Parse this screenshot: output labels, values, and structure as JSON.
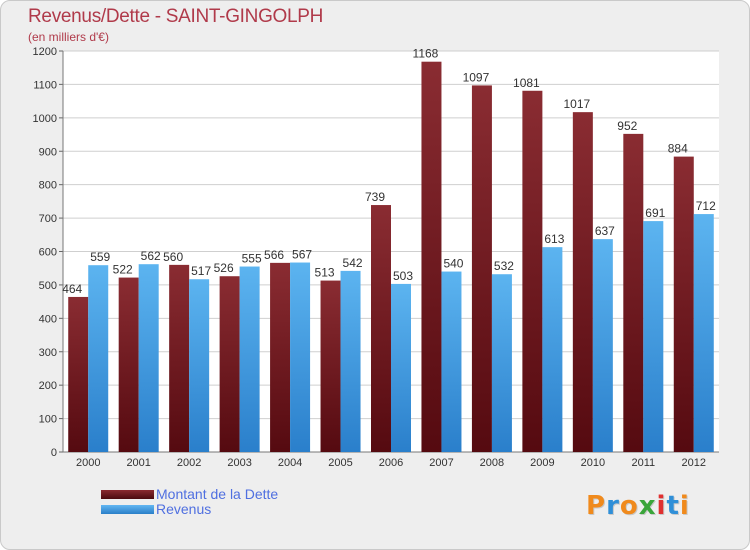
{
  "chart_data": {
    "type": "bar",
    "title": "Revenus/Dette - SAINT-GINGOLPH",
    "subtitle": "(en milliers d'€)",
    "categories": [
      "2000",
      "2001",
      "2002",
      "2003",
      "2004",
      "2005",
      "2006",
      "2007",
      "2008",
      "2009",
      "2010",
      "2011",
      "2012"
    ],
    "series": [
      {
        "name": "Montant de la Dette",
        "color": "#7a1c22",
        "values": [
          464,
          522,
          560,
          526,
          566,
          513,
          739,
          1168,
          1097,
          1081,
          1017,
          952,
          884
        ]
      },
      {
        "name": "Revenus",
        "color": "#3f9ee6",
        "values": [
          559,
          562,
          517,
          555,
          567,
          542,
          503,
          540,
          532,
          613,
          637,
          691,
          712
        ]
      }
    ],
    "ylim": [
      0,
      1200
    ],
    "yticks": [
      0,
      100,
      200,
      300,
      400,
      500,
      600,
      700,
      800,
      900,
      1000,
      1100,
      1200
    ],
    "grid": true,
    "legend_position": "bottom-left"
  },
  "logo": {
    "text": "Proxiti",
    "colors": [
      "#f08a1c",
      "#2f8fd8",
      "#f08a1c",
      "#3aa53a",
      "#e03030",
      "#2f8fd8",
      "#f08a1c"
    ]
  }
}
